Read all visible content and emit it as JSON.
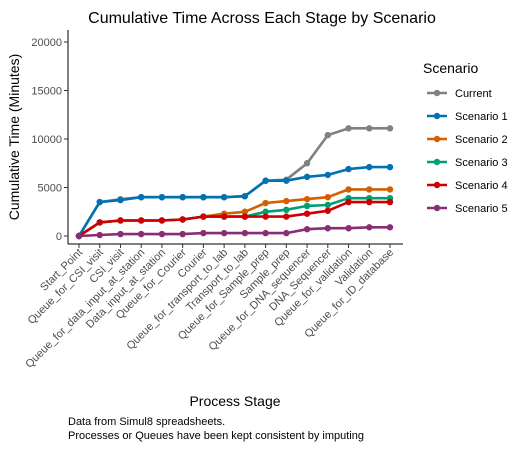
{
  "chart_data": {
    "type": "line",
    "title": "Cumulative Time Across Each Stage by Scenario",
    "xlabel": "Process Stage",
    "ylabel": "Cumulative Time (Minutes)",
    "ylim": [
      0,
      21000
    ],
    "yticks": [
      0,
      5000,
      10000,
      15000,
      20000
    ],
    "grid": false,
    "legend_position": "right",
    "legend_title": "Scenario",
    "categories": [
      "Start_Point",
      "Queue_for_CSI_visit",
      "CSI_visit",
      "Queue_for_data_input_at_station",
      "Data_input_at_station",
      "Queue_for_Courier",
      "Courier",
      "Queue_for_transport_to_lab",
      "Transport_to_lab",
      "Queue_for_Sample_prep",
      "Sample_prep",
      "Queue_for_DNA_sequencer",
      "DNA_Sequencer",
      "Queue_for_validation",
      "Validation",
      "Queue_for_ID_database"
    ],
    "series": [
      {
        "name": "Current",
        "color": "#808080",
        "values": [
          0,
          3500,
          3800,
          4000,
          4000,
          4000,
          4000,
          4000,
          4100,
          5700,
          5800,
          7500,
          10400,
          11100,
          11100,
          11100
        ]
      },
      {
        "name": "Scenario 1",
        "color": "#0072B2",
        "values": [
          0,
          3500,
          3700,
          4000,
          4000,
          4000,
          4000,
          4000,
          4100,
          5700,
          5700,
          6100,
          6300,
          6900,
          7100,
          7100
        ]
      },
      {
        "name": "Scenario 2",
        "color": "#D55E00",
        "values": [
          0,
          1400,
          1600,
          1600,
          1600,
          1700,
          2000,
          2300,
          2500,
          3400,
          3600,
          3800,
          4000,
          4800,
          4800,
          4800
        ]
      },
      {
        "name": "Scenario 3",
        "color": "#009E73",
        "values": [
          0,
          1400,
          1600,
          1600,
          1600,
          1700,
          2000,
          2000,
          2000,
          2500,
          2700,
          3100,
          3200,
          3900,
          3900,
          3900
        ]
      },
      {
        "name": "Scenario 4",
        "color": "#CC0000",
        "values": [
          0,
          1400,
          1600,
          1600,
          1600,
          1700,
          2000,
          2000,
          2000,
          2000,
          2000,
          2300,
          2600,
          3500,
          3500,
          3500
        ]
      },
      {
        "name": "Scenario 5",
        "color": "#882E72",
        "values": [
          0,
          100,
          200,
          200,
          200,
          200,
          300,
          300,
          300,
          300,
          300,
          700,
          800,
          800,
          900,
          900
        ]
      }
    ]
  },
  "caption": {
    "line1": "Data from Simul8 spreadsheets.",
    "line2": "Processes or Queues have been kept consistent by imputing"
  }
}
